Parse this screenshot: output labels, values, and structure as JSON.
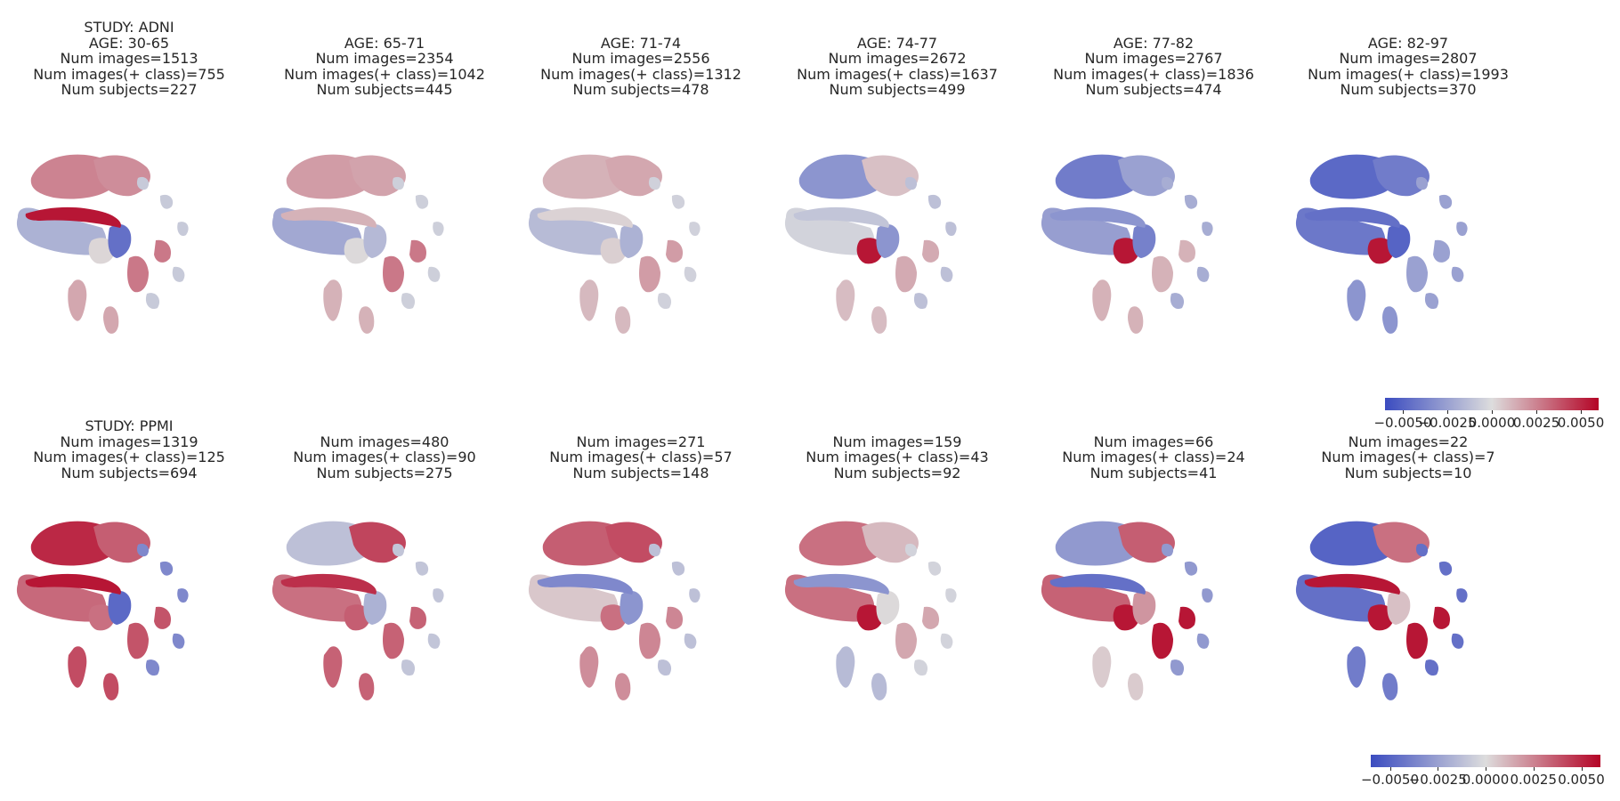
{
  "chart_data": {
    "type": "heatmap",
    "description_colormap": "coolwarm",
    "colors": {
      "low": "#3b4cc0",
      "mid": "#dddddd",
      "high": "#b40426"
    },
    "value_range": [
      -0.006,
      0.006
    ],
    "colorbar_ticks": [
      "−0.0050",
      "−0.0025",
      "0.0000",
      "0.0025",
      "0.0050"
    ],
    "colorbar_tick_values": [
      -0.005,
      -0.0025,
      0.0,
      0.0025,
      0.005
    ],
    "rows": [
      {
        "study": "STUDY: ADNI",
        "panels": [
          {
            "lines": [
              "STUDY: ADNI",
              "AGE: 30-65",
              "Num images=1513",
              "Num images(+ class)=755",
              "Num subjects=227"
            ],
            "regions": {
              "frontal_a": 0.0025,
              "frontal_b": 0.0022,
              "frontal_streak": 0.0055,
              "temporal": -0.0018,
              "caudate": -0.0045,
              "central": 0.0002,
              "occipital": 0.0015,
              "cerebellum": 0.0028,
              "right_scatter": -0.0008
            }
          },
          {
            "lines": [
              "",
              "AGE: 65-71",
              "Num images=2354",
              "Num images(+ class)=1042",
              "Num subjects=445"
            ],
            "regions": {
              "frontal_a": 0.0018,
              "frontal_b": 0.0016,
              "frontal_streak": 0.0012,
              "temporal": -0.0022,
              "caudate": -0.0015,
              "central": 0.0001,
              "occipital": 0.0012,
              "cerebellum": 0.0028,
              "right_scatter": -0.0006
            }
          },
          {
            "lines": [
              "",
              "AGE: 71-74",
              "Num images=2556",
              "Num images(+ class)=1312",
              "Num subjects=478"
            ],
            "regions": {
              "frontal_a": 0.0012,
              "frontal_b": 0.0015,
              "frontal_streak": 0.0003,
              "temporal": -0.0014,
              "caudate": -0.0018,
              "central": 0.0004,
              "occipital": 0.001,
              "cerebellum": 0.0018,
              "right_scatter": -0.0005
            }
          },
          {
            "lines": [
              "",
              "AGE: 74-77",
              "Num images=2672",
              "Num images(+ class)=1637",
              "Num subjects=499"
            ],
            "regions": {
              "frontal_a": -0.003,
              "frontal_b": 0.0008,
              "frontal_streak": -0.001,
              "temporal": -0.0004,
              "caudate": -0.003,
              "central": 0.0055,
              "occipital": 0.0009,
              "cerebellum": 0.0014,
              "right_scatter": -0.0012
            }
          },
          {
            "lines": [
              "",
              "AGE: 77-82",
              "Num images=2767",
              "Num images(+ class)=1836",
              "Num subjects=474"
            ],
            "regions": {
              "frontal_a": -0.004,
              "frontal_b": -0.0025,
              "frontal_streak": -0.003,
              "temporal": -0.0026,
              "caudate": -0.0038,
              "central": 0.0055,
              "occipital": 0.0012,
              "cerebellum": 0.0012,
              "right_scatter": -0.002
            }
          },
          {
            "lines": [
              "",
              "AGE: 82-97",
              "Num images=2807",
              "Num images(+ class)=1993",
              "Num subjects=370"
            ],
            "regions": {
              "frontal_a": -0.0048,
              "frontal_b": -0.004,
              "frontal_streak": -0.0045,
              "temporal": -0.0042,
              "caudate": -0.005,
              "central": 0.0055,
              "occipital": -0.003,
              "cerebellum": -0.0025,
              "right_scatter": -0.0025
            }
          }
        ]
      },
      {
        "study": "STUDY: PPMI",
        "panels": [
          {
            "lines": [
              "STUDY: PPMI",
              "Num images=1319",
              "Num images(+ class)=125",
              "Num subjects=694"
            ],
            "regions": {
              "frontal_a": 0.005,
              "frontal_b": 0.0035,
              "frontal_streak": 0.0055,
              "temporal": 0.0032,
              "caudate": -0.0048,
              "central": 0.003,
              "occipital": 0.004,
              "cerebellum": 0.0038,
              "right_scatter": -0.0035
            }
          },
          {
            "lines": [
              "",
              "Num images=480",
              "Num images(+ class)=90",
              "Num subjects=275"
            ],
            "regions": {
              "frontal_a": -0.0012,
              "frontal_b": 0.0042,
              "frontal_streak": 0.0048,
              "temporal": 0.003,
              "caudate": -0.0018,
              "central": 0.0035,
              "occipital": 0.0034,
              "cerebellum": 0.0034,
              "right_scatter": -0.001
            }
          },
          {
            "lines": [
              "",
              "Num images=271",
              "Num images(+ class)=57",
              "Num subjects=148"
            ],
            "regions": {
              "frontal_a": 0.0035,
              "frontal_b": 0.004,
              "frontal_streak": -0.0035,
              "temporal": 0.0006,
              "caudate": -0.003,
              "central": 0.003,
              "occipital": 0.0022,
              "cerebellum": 0.0024,
              "right_scatter": -0.0012
            }
          },
          {
            "lines": [
              "",
              "Num images=159",
              "Num images(+ class)=43",
              "Num subjects=92"
            ],
            "regions": {
              "frontal_a": 0.003,
              "frontal_b": 0.001,
              "frontal_streak": -0.003,
              "temporal": 0.003,
              "caudate": 0.0001,
              "central": 0.0055,
              "occipital": -0.0014,
              "cerebellum": 0.0015,
              "right_scatter": -0.0004
            }
          },
          {
            "lines": [
              "",
              "Num images=66",
              "Num images(+ class)=24",
              "Num subjects=41"
            ],
            "regions": {
              "frontal_a": -0.0028,
              "frontal_b": 0.0035,
              "frontal_streak": -0.0045,
              "temporal": 0.0034,
              "caudate": 0.002,
              "central": 0.0055,
              "occipital": 0.0005,
              "cerebellum": 0.0055,
              "right_scatter": -0.0028
            }
          },
          {
            "lines": [
              "",
              "Num images=22",
              "Num images(+ class)=7",
              "Num subjects=10"
            ],
            "regions": {
              "frontal_a": -0.005,
              "frontal_b": 0.003,
              "frontal_streak": 0.0055,
              "temporal": -0.0045,
              "caudate": 0.0008,
              "central": 0.0055,
              "occipital": -0.004,
              "cerebellum": 0.0055,
              "right_scatter": -0.0045
            }
          }
        ]
      }
    ],
    "colorbars": [
      "after ADNI row, right column",
      "after PPMI row, right column"
    ]
  }
}
